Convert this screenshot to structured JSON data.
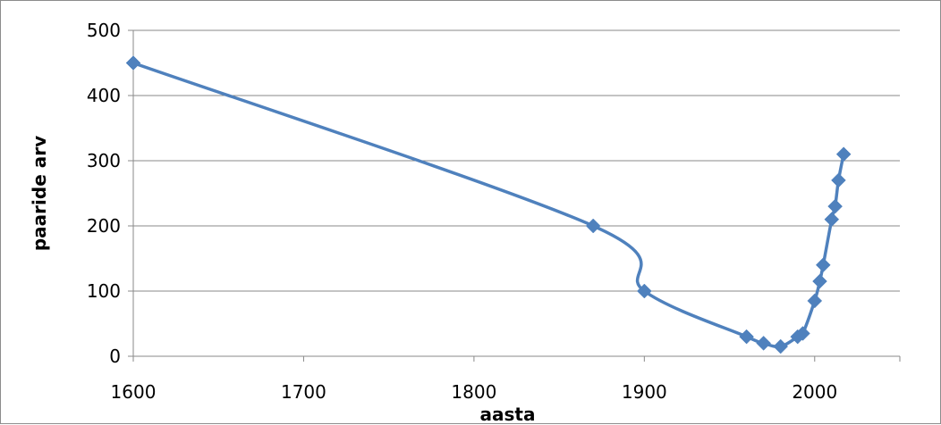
{
  "chart_data": {
    "type": "line",
    "xlabel": "aasta",
    "ylabel": "paaride arv",
    "xlim": [
      1600,
      2050
    ],
    "ylim": [
      0,
      500
    ],
    "x_ticks": [
      1600,
      1700,
      1800,
      1900,
      2000
    ],
    "y_ticks": [
      0,
      100,
      200,
      300,
      400,
      500
    ],
    "grid": "horizontal",
    "line_color": "#4F81BD",
    "series": [
      {
        "x": [
          1600,
          1870,
          1900,
          1960,
          1970,
          1980,
          1990,
          1993,
          2000,
          2003,
          2005,
          2010,
          2012,
          2014,
          2017
        ],
        "values": [
          450,
          200,
          100,
          30,
          20,
          15,
          30,
          35,
          85,
          115,
          140,
          210,
          230,
          270,
          310
        ]
      }
    ]
  }
}
